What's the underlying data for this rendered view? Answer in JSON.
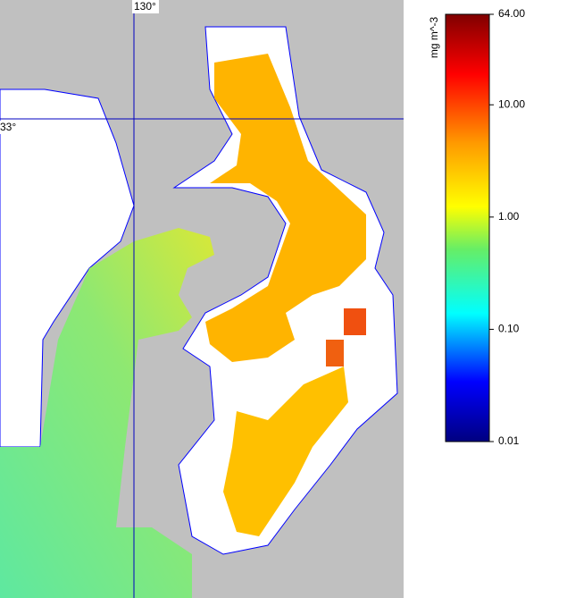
{
  "map": {
    "graticule": [
      {
        "label": "130°"
      },
      {
        "label": "33°"
      }
    ]
  },
  "colorbar": {
    "label": "mg m^-3",
    "scale": "log",
    "lim": [
      0.01,
      64
    ],
    "ticks": [
      {
        "value": 64,
        "label": "64.00"
      },
      {
        "value": 10,
        "label": "10.00"
      },
      {
        "value": 1,
        "label": "1.00"
      },
      {
        "value": 0.1,
        "label": "0.10"
      },
      {
        "value": 0.01,
        "label": "0.01"
      }
    ]
  }
}
